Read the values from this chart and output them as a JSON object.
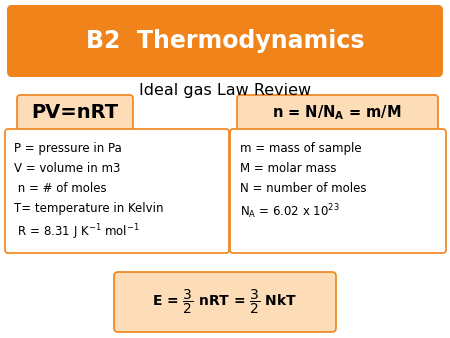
{
  "title": "B2  Thermodynamics",
  "subtitle": "Ideal gas Law Review",
  "title_bg": "#F0831A",
  "title_color": "white",
  "box_border_color": "#F0831A",
  "box_fill": "#FDDCB8",
  "white_fill": "white",
  "bg_color": "white",
  "pv_label": "PV=nRT",
  "left_lines": [
    "P = pressure in Pa",
    "V = volume in m3",
    " n = # of moles",
    "T= temperature in Kelvin",
    " R = 8.31 J K⁻¹ mol⁻¹"
  ],
  "right_line0": "m = mass of sample",
  "right_line1": "M = molar mass",
  "right_line2": "N = number of moles"
}
